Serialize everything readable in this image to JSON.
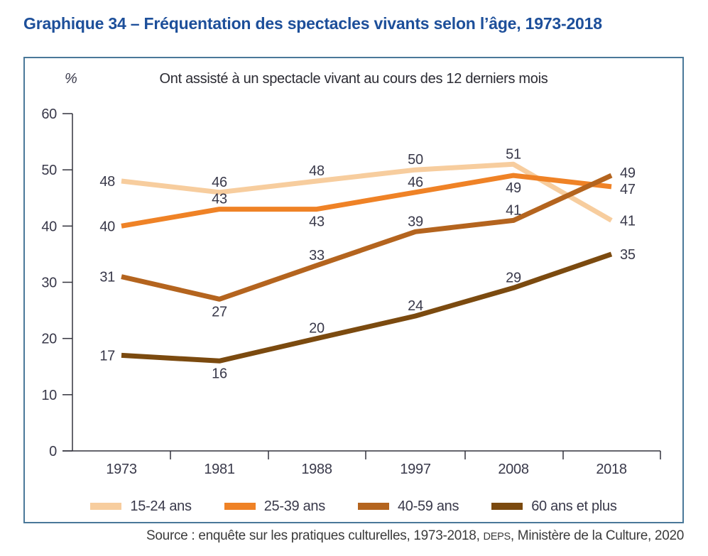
{
  "header": {
    "title": "Graphique 34 – Fréquentation des spectacles vivants selon l’âge, 1973-2018"
  },
  "figure": {
    "unit_label": "%",
    "subtitle": "Ont assisté à un spectacle vivant au cours des 12 derniers mois"
  },
  "chart_data": {
    "type": "line",
    "title": "Ont assisté à un spectacle vivant au cours des 12 derniers mois",
    "ylabel": "%",
    "xlabel": "",
    "categories": [
      "1973",
      "1981",
      "1988",
      "1997",
      "2008",
      "2018"
    ],
    "ylim": [
      0,
      60
    ],
    "yticks": [
      0,
      10,
      20,
      30,
      40,
      50,
      60
    ],
    "grid": false,
    "legend_position": "bottom",
    "data_labels": true,
    "series": [
      {
        "name": "15-24 ans",
        "color": "#F7CD9E",
        "values": [
          48,
          46,
          48,
          50,
          51,
          41
        ]
      },
      {
        "name": "25-39 ans",
        "color": "#EF8226",
        "values": [
          40,
          43,
          43,
          46,
          49,
          47
        ]
      },
      {
        "name": "40-59 ans",
        "color": "#B4641E",
        "values": [
          31,
          27,
          33,
          39,
          41,
          49
        ]
      },
      {
        "name": "60 ans et plus",
        "color": "#7B4A0F",
        "values": [
          17,
          16,
          20,
          24,
          29,
          35
        ]
      }
    ]
  },
  "source": {
    "prefix": "Source : enquête sur les pratiques culturelles, 1973-2018, ",
    "deps": "DEPS",
    "suffix": ", Ministère de la Culture, 2020"
  }
}
